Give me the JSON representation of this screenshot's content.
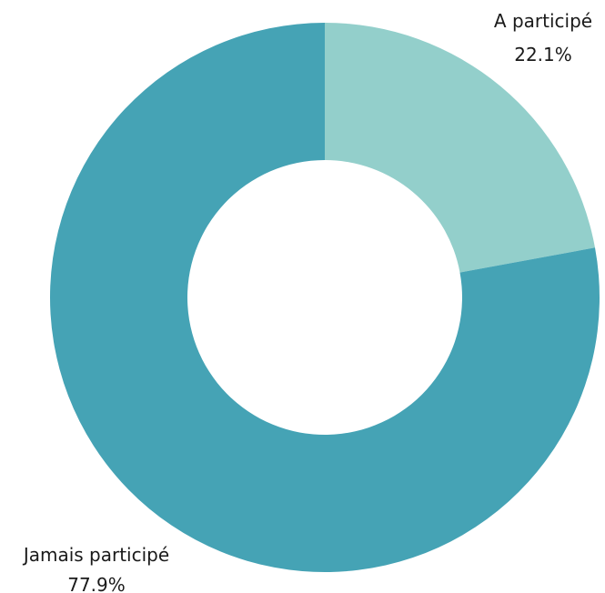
{
  "chart_data": {
    "type": "pie",
    "style": "donut",
    "slices": [
      {
        "name": "A participé",
        "value": 22.1,
        "label": "22.1%",
        "color": "#93cfcb"
      },
      {
        "name": "Jamais participé",
        "value": 77.9,
        "label": "77.9%",
        "color": "#45a3b5"
      }
    ],
    "start_angle_deg": 0,
    "direction": "clockwise"
  }
}
